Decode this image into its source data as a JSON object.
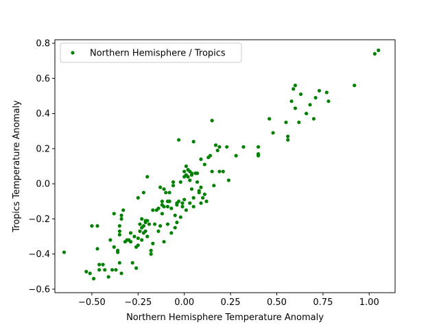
{
  "chart_data": {
    "type": "scatter",
    "title": "",
    "xlabel": "Northern Hemisphere Temperature Anomaly",
    "ylabel": "Tropics Temperature Anomaly",
    "xlim": [
      -0.7,
      1.14
    ],
    "ylim": [
      -0.62,
      0.82
    ],
    "xticks": [
      -0.5,
      -0.25,
      0.0,
      0.25,
      0.5,
      0.75,
      1.0
    ],
    "xtick_labels": [
      "−0.50",
      "−0.25",
      "0.00",
      "0.25",
      "0.50",
      "0.75",
      "1.00"
    ],
    "yticks": [
      -0.6,
      -0.4,
      -0.2,
      0.0,
      0.2,
      0.4,
      0.6,
      0.8
    ],
    "ytick_labels": [
      "−0.6",
      "−0.4",
      "−0.2",
      "0.0",
      "0.2",
      "0.4",
      "0.6",
      "0.8"
    ],
    "grid": false,
    "legend_position": "top-left",
    "series": [
      {
        "name": "Northern Hemisphere / Tropics",
        "color": "#008000",
        "marker": "circle",
        "points": [
          [
            -0.65,
            -0.39
          ],
          [
            -0.53,
            -0.5
          ],
          [
            -0.51,
            -0.51
          ],
          [
            -0.5,
            -0.24
          ],
          [
            -0.49,
            -0.54
          ],
          [
            -0.47,
            -0.24
          ],
          [
            -0.47,
            -0.37
          ],
          [
            -0.46,
            -0.49
          ],
          [
            -0.46,
            -0.46
          ],
          [
            -0.44,
            -0.46
          ],
          [
            -0.43,
            -0.49
          ],
          [
            -0.41,
            -0.53
          ],
          [
            -0.4,
            -0.32
          ],
          [
            -0.39,
            -0.49
          ],
          [
            -0.38,
            -0.17
          ],
          [
            -0.38,
            -0.36
          ],
          [
            -0.37,
            -0.49
          ],
          [
            -0.36,
            -0.38
          ],
          [
            -0.36,
            -0.39
          ],
          [
            -0.35,
            -0.29
          ],
          [
            -0.35,
            -0.27
          ],
          [
            -0.35,
            -0.24
          ],
          [
            -0.34,
            -0.2
          ],
          [
            -0.34,
            -0.18
          ],
          [
            -0.35,
            -0.45
          ],
          [
            -0.34,
            -0.51
          ],
          [
            -0.33,
            -0.15
          ],
          [
            -0.32,
            -0.33
          ],
          [
            -0.31,
            -0.32
          ],
          [
            -0.3,
            -0.32
          ],
          [
            -0.29,
            -0.28
          ],
          [
            -0.29,
            -0.33
          ],
          [
            -0.28,
            -0.45
          ],
          [
            -0.27,
            -0.3
          ],
          [
            -0.26,
            -0.36
          ],
          [
            -0.26,
            -0.48
          ],
          [
            -0.25,
            -0.08
          ],
          [
            -0.25,
            -0.31
          ],
          [
            -0.25,
            -0.35
          ],
          [
            -0.24,
            -0.27
          ],
          [
            -0.24,
            -0.23
          ],
          [
            -0.23,
            -0.2
          ],
          [
            -0.23,
            -0.25
          ],
          [
            -0.23,
            -0.32
          ],
          [
            -0.22,
            -0.05
          ],
          [
            -0.22,
            -0.24
          ],
          [
            -0.22,
            -0.28
          ],
          [
            -0.21,
            -0.27
          ],
          [
            -0.21,
            -0.21
          ],
          [
            -0.21,
            -0.22
          ],
          [
            -0.2,
            -0.3
          ],
          [
            -0.2,
            0.04
          ],
          [
            -0.2,
            -0.21
          ],
          [
            -0.19,
            -0.23
          ],
          [
            -0.18,
            -0.38
          ],
          [
            -0.18,
            -0.4
          ],
          [
            -0.17,
            -0.34
          ],
          [
            -0.17,
            -0.15
          ],
          [
            -0.16,
            -0.23
          ],
          [
            -0.15,
            -0.15
          ],
          [
            -0.14,
            -0.14
          ],
          [
            -0.14,
            -0.27
          ],
          [
            -0.13,
            -0.24
          ],
          [
            -0.13,
            -0.02
          ],
          [
            -0.12,
            -0.17
          ],
          [
            -0.12,
            -0.12
          ],
          [
            -0.12,
            -0.1
          ],
          [
            -0.11,
            -0.13
          ],
          [
            -0.11,
            -0.03
          ],
          [
            -0.11,
            -0.33
          ],
          [
            -0.1,
            -0.05
          ],
          [
            -0.09,
            -0.1
          ],
          [
            -0.09,
            -0.13
          ],
          [
            -0.09,
            -0.23
          ],
          [
            -0.08,
            -0.1
          ],
          [
            -0.08,
            -0.05
          ],
          [
            -0.07,
            -0.14
          ],
          [
            -0.07,
            -0.28
          ],
          [
            -0.06,
            0.01
          ],
          [
            -0.06,
            -0.01
          ],
          [
            -0.05,
            -0.25
          ],
          [
            -0.05,
            -0.18
          ],
          [
            -0.04,
            -0.11
          ],
          [
            -0.04,
            -0.12
          ],
          [
            -0.04,
            -0.22
          ],
          [
            -0.03,
            0.25
          ],
          [
            -0.03,
            -0.1
          ],
          [
            -0.02,
            0.01
          ],
          [
            -0.02,
            -0.19
          ],
          [
            -0.01,
            -0.11
          ],
          [
            -0.01,
            -0.13
          ],
          [
            0.0,
            -0.09
          ],
          [
            0.0,
            0.04
          ],
          [
            0.0,
            0.07
          ],
          [
            0.01,
            0.1
          ],
          [
            0.01,
            0.05
          ],
          [
            0.01,
            -0.15
          ],
          [
            0.02,
            0.04
          ],
          [
            0.02,
            0.08
          ],
          [
            0.03,
            0.07
          ],
          [
            0.03,
            0.02
          ],
          [
            0.03,
            -0.11
          ],
          [
            0.04,
            0.05
          ],
          [
            0.04,
            0.06
          ],
          [
            0.04,
            -0.03
          ],
          [
            0.05,
            0.24
          ],
          [
            0.05,
            -0.08
          ],
          [
            0.05,
            -0.13
          ],
          [
            0.06,
            0.06
          ],
          [
            0.07,
            0.01
          ],
          [
            0.07,
            0.06
          ],
          [
            0.08,
            -0.05
          ],
          [
            0.08,
            -0.04
          ],
          [
            0.09,
            0.14
          ],
          [
            0.09,
            -0.02
          ],
          [
            0.09,
            -0.11
          ],
          [
            0.1,
            -0.08
          ],
          [
            0.11,
            0.11
          ],
          [
            0.11,
            -0.06
          ],
          [
            0.12,
            -0.1
          ],
          [
            0.13,
            0.15
          ],
          [
            0.14,
            0.16
          ],
          [
            0.15,
            0.36
          ],
          [
            0.15,
            0.07
          ],
          [
            0.16,
            -0.01
          ],
          [
            0.17,
            0.22
          ],
          [
            0.18,
            0.19
          ],
          [
            0.19,
            0.07
          ],
          [
            0.19,
            0.21
          ],
          [
            0.21,
            0.07
          ],
          [
            0.23,
            0.21
          ],
          [
            0.24,
            0.02
          ],
          [
            0.28,
            0.16
          ],
          [
            0.32,
            0.21
          ],
          [
            0.4,
            0.16
          ],
          [
            0.4,
            0.17
          ],
          [
            0.4,
            0.21
          ],
          [
            0.46,
            0.37
          ],
          [
            0.48,
            0.29
          ],
          [
            0.55,
            0.35
          ],
          [
            0.56,
            0.27
          ],
          [
            0.56,
            0.25
          ],
          [
            0.58,
            0.47
          ],
          [
            0.59,
            0.54
          ],
          [
            0.6,
            0.56
          ],
          [
            0.6,
            0.43
          ],
          [
            0.62,
            0.35
          ],
          [
            0.63,
            0.51
          ],
          [
            0.66,
            0.4
          ],
          [
            0.68,
            0.45
          ],
          [
            0.7,
            0.37
          ],
          [
            0.71,
            0.49
          ],
          [
            0.73,
            0.53
          ],
          [
            0.77,
            0.52
          ],
          [
            0.78,
            0.47
          ],
          [
            0.92,
            0.56
          ],
          [
            1.03,
            0.74
          ],
          [
            1.05,
            0.76
          ]
        ]
      }
    ]
  }
}
